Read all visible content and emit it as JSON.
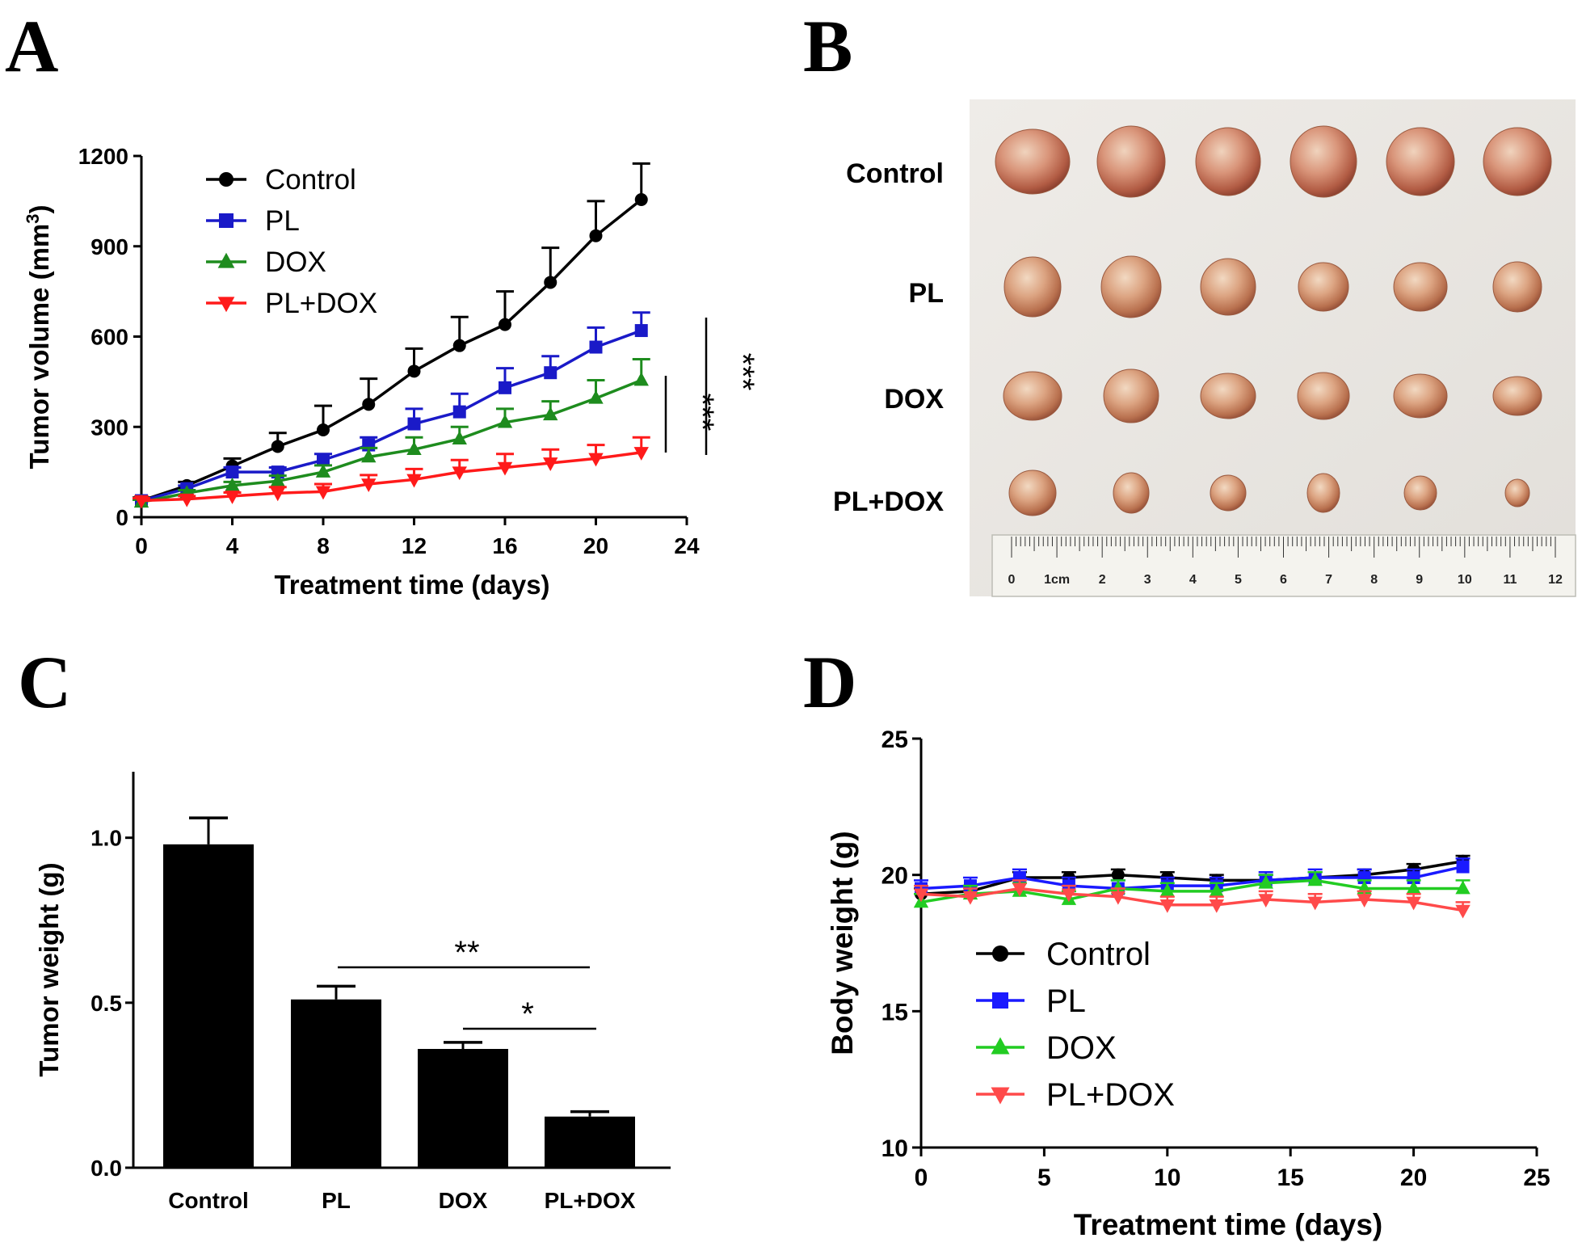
{
  "panels": {
    "A": {
      "letter": "A"
    },
    "B": {
      "letter": "B"
    },
    "C": {
      "letter": "C"
    },
    "D": {
      "letter": "D"
    }
  },
  "colors": {
    "Control": "#000000",
    "PL": "#1a1ac8",
    "DOX": "#1e8c1e",
    "PL+DOX": "#ff1a1a",
    "D_Control": "#000000",
    "D_PL": "#1a1aff",
    "D_DOX": "#22cc22",
    "D_PL+DOX": "#ff4a4a"
  },
  "chart_data": [
    {
      "id": "A",
      "type": "line",
      "title": "",
      "xlabel": "Treatment time (days)",
      "ylabel": "Tumor volume (mm3)",
      "ylabel_base": "Tumor volume (mm",
      "ylabel_sup": "3",
      "ylabel_close": ")",
      "xlim": [
        0,
        24
      ],
      "ylim": [
        0,
        1200
      ],
      "xticks": [
        0,
        4,
        8,
        12,
        16,
        20,
        24
      ],
      "yticks": [
        0,
        300,
        600,
        900,
        1200
      ],
      "legend_position": "top-left",
      "x": [
        0,
        2,
        4,
        6,
        8,
        10,
        12,
        14,
        16,
        18,
        20,
        22
      ],
      "series": [
        {
          "name": "Control",
          "marker": "circle",
          "values": [
            55,
            105,
            170,
            235,
            290,
            375,
            485,
            570,
            640,
            780,
            935,
            1055
          ],
          "errors": [
            10,
            12,
            25,
            45,
            80,
            85,
            75,
            95,
            110,
            115,
            115,
            120
          ]
        },
        {
          "name": "PL",
          "marker": "square",
          "values": [
            55,
            95,
            150,
            150,
            190,
            240,
            310,
            350,
            430,
            480,
            565,
            620
          ],
          "errors": [
            8,
            10,
            15,
            15,
            20,
            25,
            50,
            60,
            65,
            55,
            65,
            60
          ]
        },
        {
          "name": "DOX",
          "marker": "triangle-up",
          "values": [
            50,
            80,
            105,
            120,
            150,
            200,
            225,
            260,
            315,
            340,
            395,
            455
          ],
          "errors": [
            8,
            10,
            12,
            18,
            22,
            30,
            40,
            40,
            45,
            45,
            60,
            70
          ]
        },
        {
          "name": "PL+DOX",
          "marker": "triangle-down",
          "values": [
            55,
            60,
            70,
            80,
            85,
            110,
            125,
            150,
            165,
            180,
            195,
            215
          ],
          "errors": [
            8,
            10,
            12,
            20,
            25,
            30,
            35,
            40,
            45,
            45,
            45,
            50
          ]
        }
      ],
      "annotations": [
        {
          "text": "***",
          "between": [
            "PL+DOX",
            "DOX"
          ]
        },
        {
          "text": "***",
          "between": [
            "PL+DOX",
            "PL"
          ]
        }
      ]
    },
    {
      "id": "C",
      "type": "bar",
      "title": "",
      "xlabel": "",
      "ylabel": "Tumor weight (g)",
      "ylim": [
        0,
        1.2
      ],
      "yticks": [
        "0.0",
        "0.5",
        "1.0"
      ],
      "ytick_values": [
        0,
        0.5,
        1.0
      ],
      "categories": [
        "Control",
        "PL",
        "DOX",
        "PL+DOX"
      ],
      "values": [
        0.98,
        0.51,
        0.36,
        0.155
      ],
      "errors": [
        0.08,
        0.04,
        0.02,
        0.015
      ],
      "annotations": [
        {
          "text": "**",
          "from": "PL",
          "to": "PL+DOX"
        },
        {
          "text": "*",
          "from": "DOX",
          "to": "PL+DOX"
        }
      ]
    },
    {
      "id": "D",
      "type": "line",
      "title": "",
      "xlabel": "Treatment time (days)",
      "ylabel": "Body weight (g)",
      "xlim": [
        0,
        25
      ],
      "ylim": [
        10,
        25
      ],
      "xticks": [
        0,
        5,
        10,
        15,
        20,
        25
      ],
      "yticks": [
        10,
        15,
        20,
        25
      ],
      "legend_position": "center-left",
      "x": [
        0,
        2,
        4,
        6,
        8,
        10,
        12,
        14,
        16,
        18,
        20,
        22
      ],
      "series": [
        {
          "name": "Control",
          "marker": "circle",
          "values": [
            19.3,
            19.4,
            19.9,
            19.9,
            20.0,
            19.9,
            19.8,
            19.8,
            19.9,
            20.0,
            20.2,
            20.5
          ],
          "errors": [
            0.2,
            0.2,
            0.2,
            0.2,
            0.2,
            0.2,
            0.2,
            0.2,
            0.2,
            0.2,
            0.2,
            0.2
          ]
        },
        {
          "name": "PL",
          "marker": "square",
          "values": [
            19.5,
            19.6,
            19.9,
            19.6,
            19.5,
            19.6,
            19.6,
            19.8,
            19.9,
            19.9,
            19.9,
            20.3
          ],
          "errors": [
            0.3,
            0.3,
            0.3,
            0.3,
            0.3,
            0.3,
            0.3,
            0.3,
            0.3,
            0.3,
            0.3,
            0.3
          ]
        },
        {
          "name": "DOX",
          "marker": "triangle-up",
          "values": [
            19.0,
            19.3,
            19.4,
            19.1,
            19.5,
            19.4,
            19.4,
            19.7,
            19.8,
            19.5,
            19.5,
            19.5
          ],
          "errors": [
            0.3,
            0.3,
            0.3,
            0.3,
            0.3,
            0.3,
            0.3,
            0.3,
            0.3,
            0.3,
            0.3,
            0.3
          ]
        },
        {
          "name": "PL+DOX",
          "marker": "triangle-down",
          "values": [
            19.3,
            19.2,
            19.5,
            19.3,
            19.2,
            18.9,
            18.9,
            19.1,
            19.0,
            19.1,
            19.0,
            18.7
          ],
          "errors": [
            0.3,
            0.3,
            0.3,
            0.3,
            0.3,
            0.3,
            0.3,
            0.3,
            0.3,
            0.3,
            0.3,
            0.3
          ]
        }
      ]
    }
  ],
  "photo": {
    "rows": [
      "Control",
      "PL",
      "DOX",
      "PL+DOX"
    ],
    "ruler_labels": [
      "0",
      "1cm",
      "2",
      "3",
      "4",
      "5",
      "6",
      "7",
      "8",
      "9",
      "10",
      "11",
      "12"
    ]
  }
}
